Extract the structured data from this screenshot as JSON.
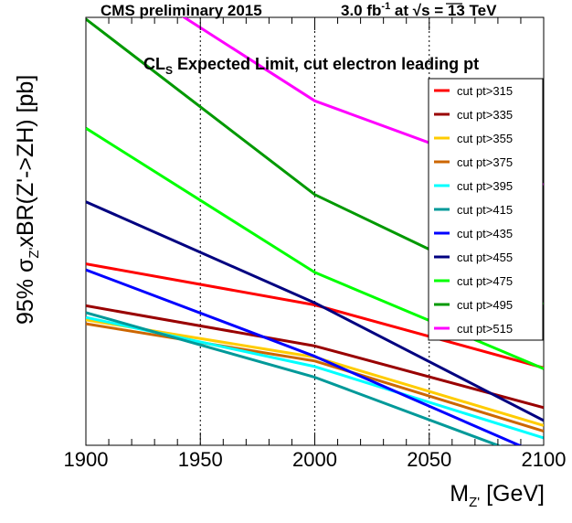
{
  "header": {
    "left": "CMS preliminary 2015",
    "right_lumi": "3.0 fb",
    "right_exp": "-1",
    "right_at": " at ",
    "right_sqrt": "√s",
    "right_energy": " = 13 TeV"
  },
  "chart_data": {
    "type": "line",
    "annotation_main": "CL",
    "annotation_sub": "S",
    "annotation_rest": " Expected Limit, cut electron leading pt",
    "xlabel_main": "M",
    "xlabel_sub": "Z'",
    "xlabel_rest": " [GeV]",
    "ylabel_pre": "95% σ",
    "ylabel_sub": "Z'",
    "ylabel_rest": "xBR(Z'->ZH) [pb]",
    "xlim": [
      1900,
      2100
    ],
    "ylim": [
      0,
      1
    ],
    "x_ticks": [
      "1900",
      "1950",
      "2000",
      "2050",
      "2100"
    ],
    "grid_x": [
      1950,
      2000,
      2050
    ],
    "legend_position": "top-right",
    "series": [
      {
        "name": "cut pt>315",
        "color": "#ff0000",
        "x": [
          1900,
          2000,
          2100
        ],
        "y": [
          0.424,
          0.328,
          0.181
        ]
      },
      {
        "name": "cut pt>335",
        "color": "#990000",
        "x": [
          1900,
          2000,
          2100
        ],
        "y": [
          0.326,
          0.232,
          0.088
        ]
      },
      {
        "name": "cut pt>355",
        "color": "#ffcc00",
        "x": [
          1900,
          2000,
          2100
        ],
        "y": [
          0.293,
          0.206,
          0.046
        ]
      },
      {
        "name": "cut pt>375",
        "color": "#cc6600",
        "x": [
          1900,
          2000,
          2100
        ],
        "y": [
          0.284,
          0.197,
          0.033
        ]
      },
      {
        "name": "cut pt>395",
        "color": "#00ffff",
        "x": [
          1900,
          2000,
          2100
        ],
        "y": [
          0.299,
          0.184,
          0.017
        ]
      },
      {
        "name": "cut pt>415",
        "color": "#009999",
        "x": [
          1900,
          2000,
          2100
        ],
        "y": [
          0.31,
          0.159,
          -0.04
        ]
      },
      {
        "name": "cut pt>435",
        "color": "#0000ff",
        "x": [
          1900,
          2000,
          2100
        ],
        "y": [
          0.41,
          0.208,
          -0.025
        ]
      },
      {
        "name": "cut pt>455",
        "color": "#000080",
        "x": [
          1900,
          2000,
          2100
        ],
        "y": [
          0.569,
          0.333,
          0.058
        ]
      },
      {
        "name": "cut pt>475",
        "color": "#00ff00",
        "x": [
          1900,
          2000,
          2100
        ],
        "y": [
          0.741,
          0.404,
          0.179
        ]
      },
      {
        "name": "cut pt>495",
        "color": "#009900",
        "x": [
          1900,
          2000,
          2100
        ],
        "y": [
          0.996,
          0.586,
          0.33
        ]
      },
      {
        "name": "cut pt>515",
        "color": "#ff00ff",
        "x": [
          1900,
          2000,
          2100
        ],
        "y": [
          1.147,
          0.805,
          0.609
        ]
      }
    ]
  }
}
